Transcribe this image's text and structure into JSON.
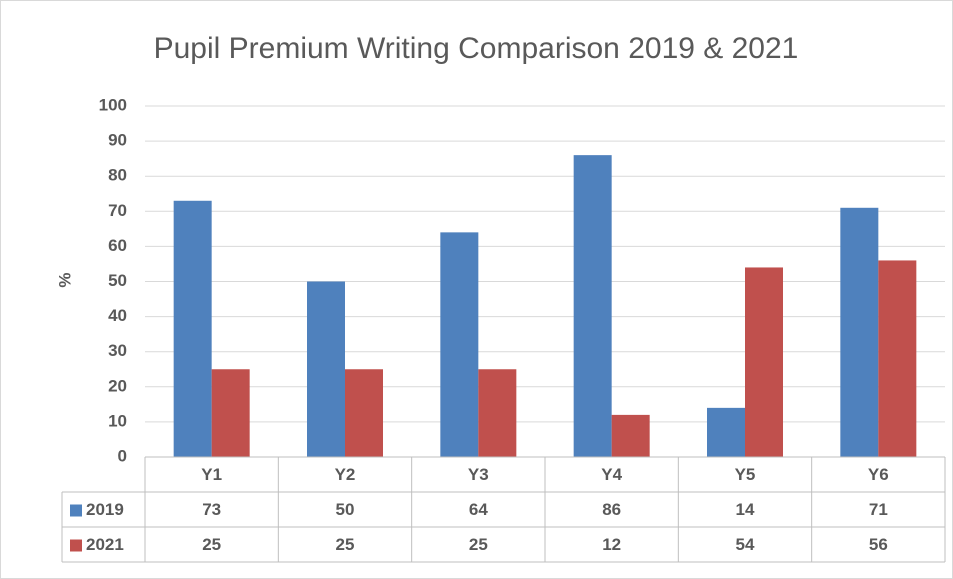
{
  "chart_data": {
    "type": "bar",
    "title": "Pupil Premium Writing Comparison 2019 & 2021",
    "y_label": "%",
    "categories": [
      "Y1",
      "Y2",
      "Y3",
      "Y4",
      "Y5",
      "Y6"
    ],
    "series": [
      {
        "name": "2019",
        "color": "#4f81bd",
        "values": [
          73,
          50,
          64,
          86,
          14,
          71
        ]
      },
      {
        "name": "2021",
        "color": "#c0504d",
        "values": [
          25,
          25,
          25,
          12,
          54,
          56
        ]
      }
    ],
    "ylim": [
      0,
      100
    ],
    "yticks": [
      0,
      10,
      20,
      30,
      40,
      50,
      60,
      70,
      80,
      90,
      100
    ],
    "grid": true,
    "data_table": true
  }
}
